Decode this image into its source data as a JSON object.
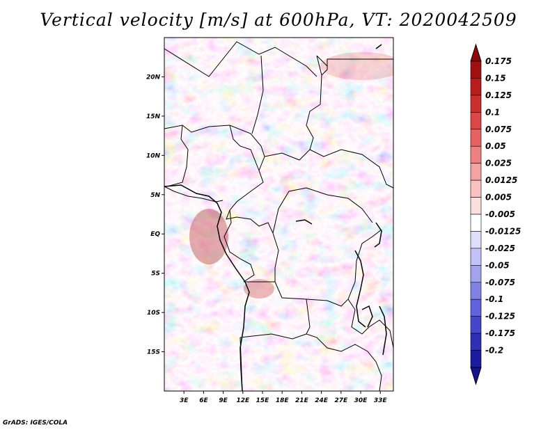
{
  "title": "Vertical velocity [m/s] at 600hPa, VT: 2020042509",
  "footer": "GrADS: IGES/COLA",
  "map": {
    "variable": "Vertical velocity",
    "units": "m/s",
    "level": "600hPa",
    "valid_time": "2020042509",
    "lon_range": [
      0,
      35
    ],
    "lat_range": [
      -20,
      25
    ],
    "lat_ticks": [
      {
        "value": 20,
        "label": "20N"
      },
      {
        "value": 15,
        "label": "15N"
      },
      {
        "value": 10,
        "label": "10N"
      },
      {
        "value": 5,
        "label": "5N"
      },
      {
        "value": 0,
        "label": "EQ"
      },
      {
        "value": -5,
        "label": "5S"
      },
      {
        "value": -10,
        "label": "10S"
      },
      {
        "value": -15,
        "label": "15S"
      }
    ],
    "lon_ticks": [
      {
        "value": 3,
        "label": "3E"
      },
      {
        "value": 6,
        "label": "6E"
      },
      {
        "value": 9,
        "label": "9E"
      },
      {
        "value": 12,
        "label": "12E"
      },
      {
        "value": 15,
        "label": "15E"
      },
      {
        "value": 18,
        "label": "18E"
      },
      {
        "value": 21,
        "label": "21E"
      },
      {
        "value": 24,
        "label": "24E"
      },
      {
        "value": 27,
        "label": "27E"
      },
      {
        "value": 30,
        "label": "30E"
      },
      {
        "value": 33,
        "label": "33E"
      }
    ]
  },
  "colorbar": {
    "levels": [
      {
        "label": "0.175",
        "color": "#a01010"
      },
      {
        "label": "0.15",
        "color": "#b81c1c"
      },
      {
        "label": "0.125",
        "color": "#cc2e2e"
      },
      {
        "label": "0.1",
        "color": "#dc4646"
      },
      {
        "label": "0.075",
        "color": "#e66262"
      },
      {
        "label": "0.05",
        "color": "#ee8080"
      },
      {
        "label": "0.025",
        "color": "#f4a2a2"
      },
      {
        "label": "0.0125",
        "color": "#f8c2c2"
      },
      {
        "label": "0.005",
        "color": "#fbdede"
      },
      {
        "label": "-0.005",
        "color": "#ffffff"
      },
      {
        "label": "-0.0125",
        "color": "#dedef8"
      },
      {
        "label": "-0.025",
        "color": "#c2c2f4"
      },
      {
        "label": "-0.05",
        "color": "#a2a2ee"
      },
      {
        "label": "-0.075",
        "color": "#8282e6"
      },
      {
        "label": "-0.1",
        "color": "#6262dc"
      },
      {
        "label": "-0.125",
        "color": "#4646cc"
      },
      {
        "label": "-0.175",
        "color": "#2e2eb8"
      },
      {
        "label": "-0.2",
        "color": "#1c1ca0"
      }
    ],
    "top_color": "#8c0a0a",
    "bottom_color": "#14148c"
  }
}
